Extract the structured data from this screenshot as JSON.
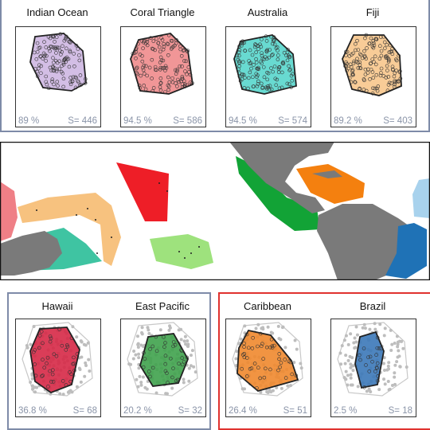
{
  "regions_top": [
    {
      "name": "Indian Ocean",
      "percent": "89 %",
      "species": "S= 446",
      "color": "#cbb3e0",
      "stroke": "#222"
    },
    {
      "name": "Coral Triangle",
      "percent": "94.5 %",
      "species": "S= 586",
      "color": "#ee8485",
      "stroke": "#222"
    },
    {
      "name": "Australia",
      "percent": "94.5 %",
      "species": "S= 574",
      "color": "#4dd4c9",
      "stroke": "#222"
    },
    {
      "name": "Fiji",
      "percent": "89.2 %",
      "species": "S= 403",
      "color": "#f7c385",
      "stroke": "#222"
    }
  ],
  "regions_bottom_left": [
    {
      "name": "Hawaii",
      "percent": "36.8 %",
      "species": "S= 68",
      "color": "#d62846",
      "stroke": "#222"
    },
    {
      "name": "East Pacific",
      "percent": "20.2 %",
      "species": "S= 32",
      "color": "#3fa24c",
      "stroke": "#222"
    }
  ],
  "regions_bottom_right": [
    {
      "name": "Caribbean",
      "percent": "26.4 %",
      "species": "S= 51",
      "color": "#f0882d",
      "stroke": "#222"
    },
    {
      "name": "Brazil",
      "percent": "2.5 %",
      "species": "S= 18",
      "color": "#3b78b8",
      "stroke": "#222"
    }
  ],
  "colors": {
    "land": "#7a7a7a",
    "ocean": "#ffffff",
    "frame_pacific": "#7e8ba8",
    "frame_atlantic": "#e0322f",
    "background_points": "#bdbdbd"
  }
}
